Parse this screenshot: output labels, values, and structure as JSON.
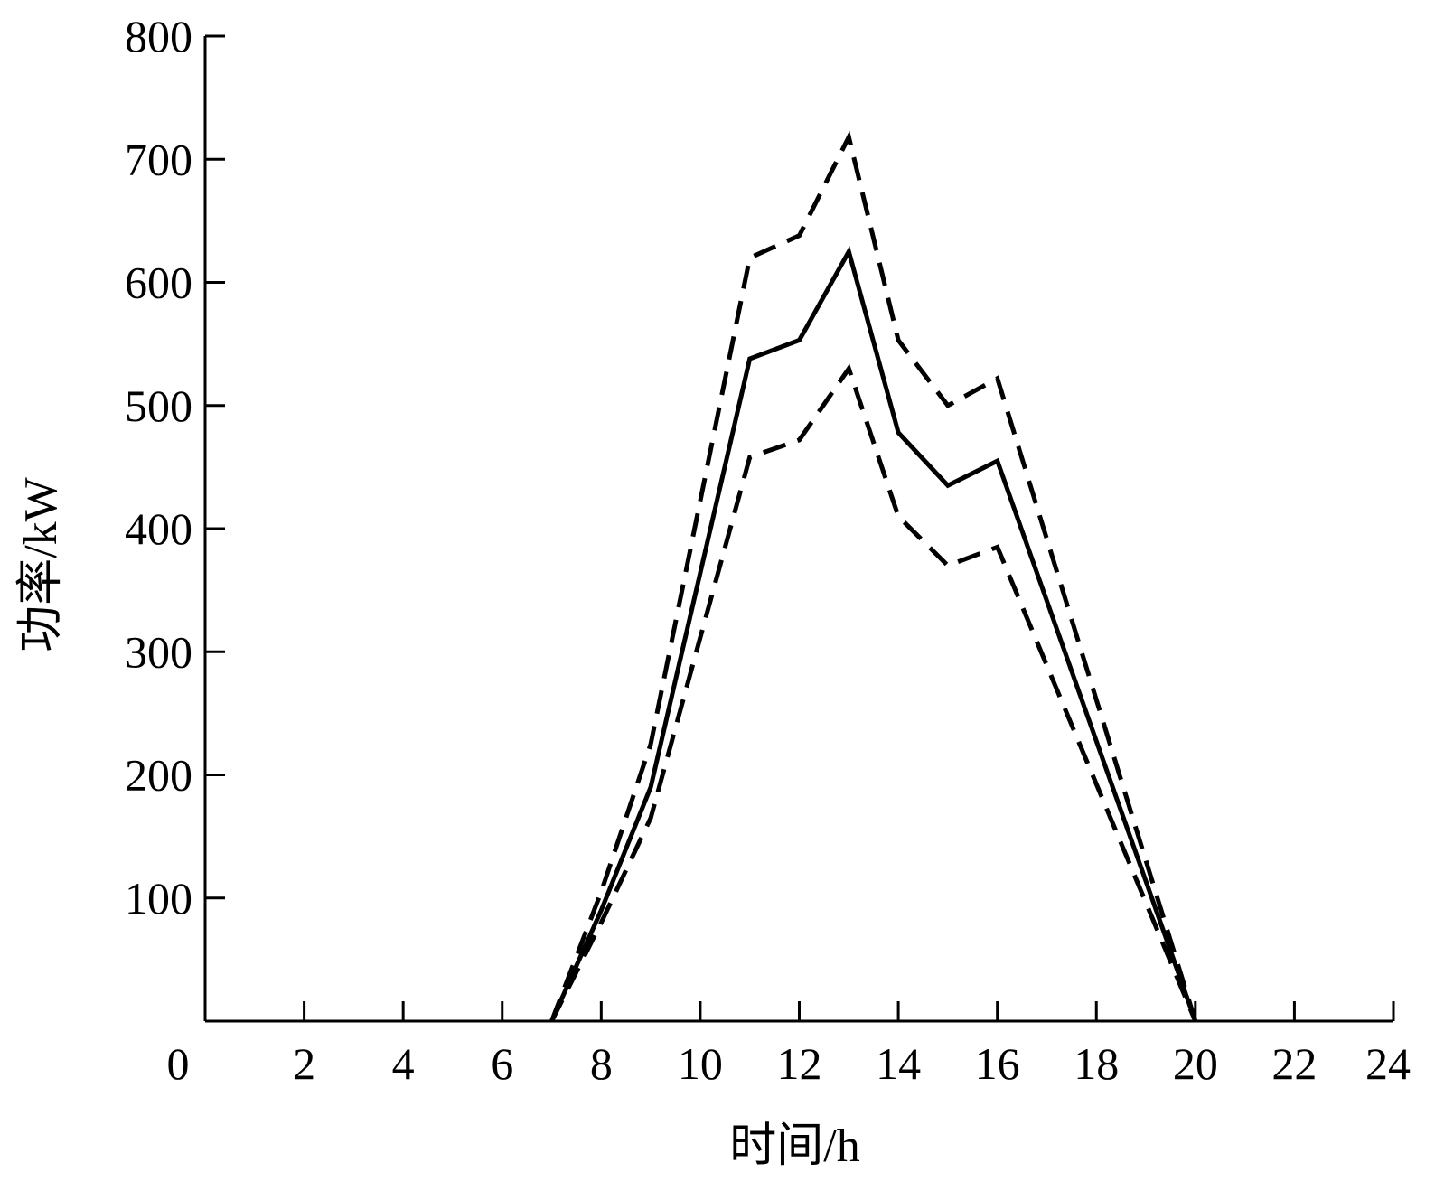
{
  "chart_data": {
    "type": "line",
    "title": "",
    "xlabel": "时间/h",
    "ylabel": "功率/kW",
    "xlim": [
      0,
      24
    ],
    "ylim": [
      0,
      800
    ],
    "xticks": [
      0,
      2,
      4,
      6,
      8,
      10,
      12,
      14,
      16,
      18,
      20,
      22,
      24
    ],
    "yticks": [
      100,
      200,
      300,
      400,
      500,
      600,
      700,
      800
    ],
    "grid": false,
    "legend": "none",
    "series": [
      {
        "style": "dashed",
        "color": "#000000",
        "x": [
          7,
          8,
          9,
          11,
          12,
          13,
          14,
          15,
          16,
          20
        ],
        "y": [
          0,
          105,
          225,
          620,
          638,
          718,
          553,
          500,
          522,
          0
        ]
      },
      {
        "style": "solid",
        "color": "#000000",
        "x": [
          7,
          8,
          9,
          11,
          12,
          13,
          14,
          15,
          16,
          20
        ],
        "y": [
          0,
          90,
          190,
          538,
          553,
          625,
          478,
          435,
          455,
          0
        ]
      },
      {
        "style": "dashed",
        "color": "#000000",
        "x": [
          7,
          8,
          9,
          11,
          12,
          13,
          14,
          15,
          16,
          20
        ],
        "y": [
          0,
          80,
          165,
          458,
          472,
          530,
          410,
          370,
          385,
          0
        ]
      }
    ]
  }
}
